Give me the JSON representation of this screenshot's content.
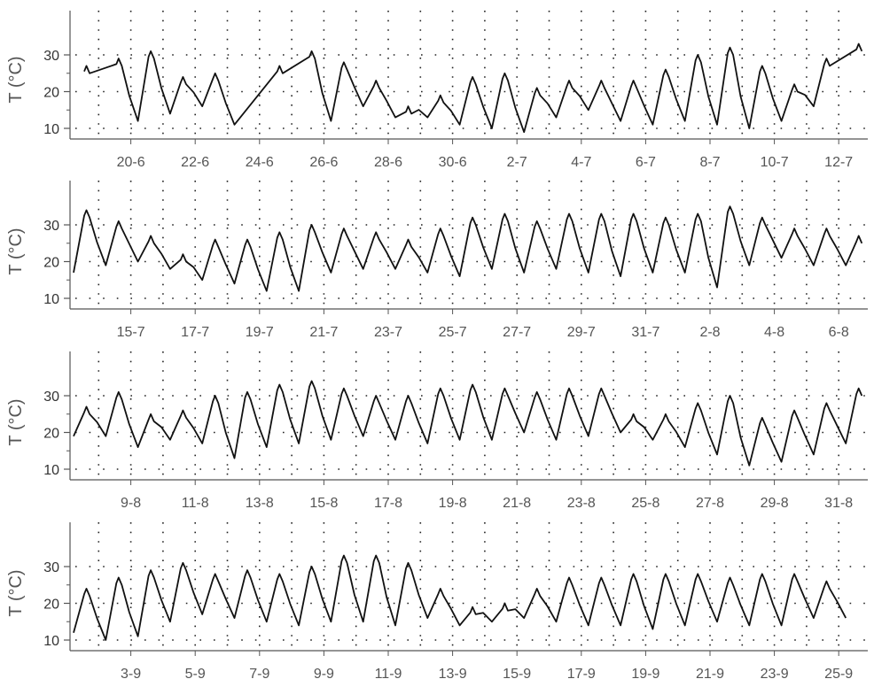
{
  "chart_data": [
    {
      "type": "line",
      "ylabel": "T (°C)",
      "yticks": [
        10,
        20,
        30
      ],
      "ylim": [
        5,
        38
      ],
      "start_date": "2018-06-18",
      "days": 26,
      "xtick_labels": [
        "20-6",
        "22-6",
        "24-6",
        "26-6",
        "28-6",
        "30-6",
        "2-7",
        "4-7",
        "6-7",
        "8-7",
        "10-7",
        "12-7"
      ],
      "grid": true,
      "series": [
        {
          "daily_min": [
            null,
            null,
            12,
            14,
            16,
            11,
            null,
            null,
            12,
            16,
            13,
            13,
            11,
            10,
            9,
            13,
            15,
            12,
            11,
            12,
            11,
            10,
            12,
            16,
            null,
            14
          ],
          "daily_max": [
            27,
            29,
            31,
            24,
            25,
            null,
            27,
            31,
            28,
            23,
            16,
            19,
            24,
            25,
            21,
            23,
            23,
            23,
            26,
            30,
            32,
            27,
            22,
            29,
            33,
            34
          ]
        }
      ]
    },
    {
      "type": "line",
      "ylabel": "T (°C)",
      "yticks": [
        10,
        20,
        30
      ],
      "ylim": [
        5,
        38
      ],
      "start_date": "2018-07-14",
      "days": 26,
      "xtick_labels": [
        "15-7",
        "17-7",
        "19-7",
        "21-7",
        "23-7",
        "25-7",
        "27-7",
        "29-7",
        "31-7",
        "2-8",
        "4-8",
        "6-8"
      ],
      "grid": true,
      "series": [
        {
          "daily_min": [
            17,
            19,
            20,
            18,
            15,
            14,
            12,
            12,
            17,
            18,
            18,
            17,
            16,
            18,
            17,
            18,
            17,
            16,
            17,
            17,
            13,
            19,
            21,
            19,
            19,
            21
          ],
          "daily_max": [
            34,
            31,
            27,
            22,
            26,
            26,
            28,
            30,
            29,
            28,
            26,
            29,
            32,
            33,
            31,
            33,
            33,
            33,
            32,
            33,
            35,
            32,
            29,
            29,
            27,
            24
          ]
        }
      ]
    },
    {
      "type": "line",
      "ylabel": "T (°C)",
      "yticks": [
        10,
        20,
        30
      ],
      "ylim": [
        5,
        38
      ],
      "start_date": "2018-08-07",
      "days": 26,
      "xtick_labels": [
        "9-8",
        "11-8",
        "13-8",
        "15-8",
        "17-8",
        "19-8",
        "21-8",
        "23-8",
        "25-8",
        "27-8",
        "29-8",
        "31-8"
      ],
      "grid": true,
      "series": [
        {
          "daily_min": [
            19,
            19,
            16,
            18,
            17,
            13,
            16,
            17,
            18,
            19,
            18,
            17,
            18,
            18,
            20,
            18,
            19,
            20,
            18,
            16,
            14,
            11,
            12,
            14,
            17,
            16
          ],
          "daily_max": [
            27,
            31,
            25,
            26,
            30,
            31,
            33,
            34,
            32,
            30,
            30,
            32,
            33,
            32,
            31,
            32,
            32,
            25,
            25,
            28,
            30,
            24,
            26,
            28,
            32,
            24
          ]
        }
      ]
    },
    {
      "type": "line",
      "ylabel": "T (°C)",
      "yticks": [
        10,
        20,
        30
      ],
      "ylim": [
        5,
        38
      ],
      "start_date": "2018-09-01",
      "days": 26,
      "xtick_labels": [
        "3-9",
        "5-9",
        "7-9",
        "9-9",
        "11-9",
        "13-9",
        "15-9",
        "17-9",
        "19-9",
        "21-9",
        "23-9",
        "25-9"
      ],
      "grid": true,
      "series": [
        {
          "daily_min": [
            12,
            10,
            11,
            15,
            17,
            16,
            15,
            14,
            15,
            15,
            14,
            16,
            14,
            15,
            16,
            15,
            14,
            14,
            13,
            14,
            15,
            14,
            14,
            16,
            16,
            null
          ],
          "daily_max": [
            24,
            27,
            29,
            31,
            28,
            29,
            28,
            30,
            33,
            33,
            31,
            24,
            19,
            20,
            24,
            27,
            27,
            28,
            28,
            28,
            27,
            28,
            28,
            26,
            null,
            null
          ]
        }
      ]
    }
  ]
}
